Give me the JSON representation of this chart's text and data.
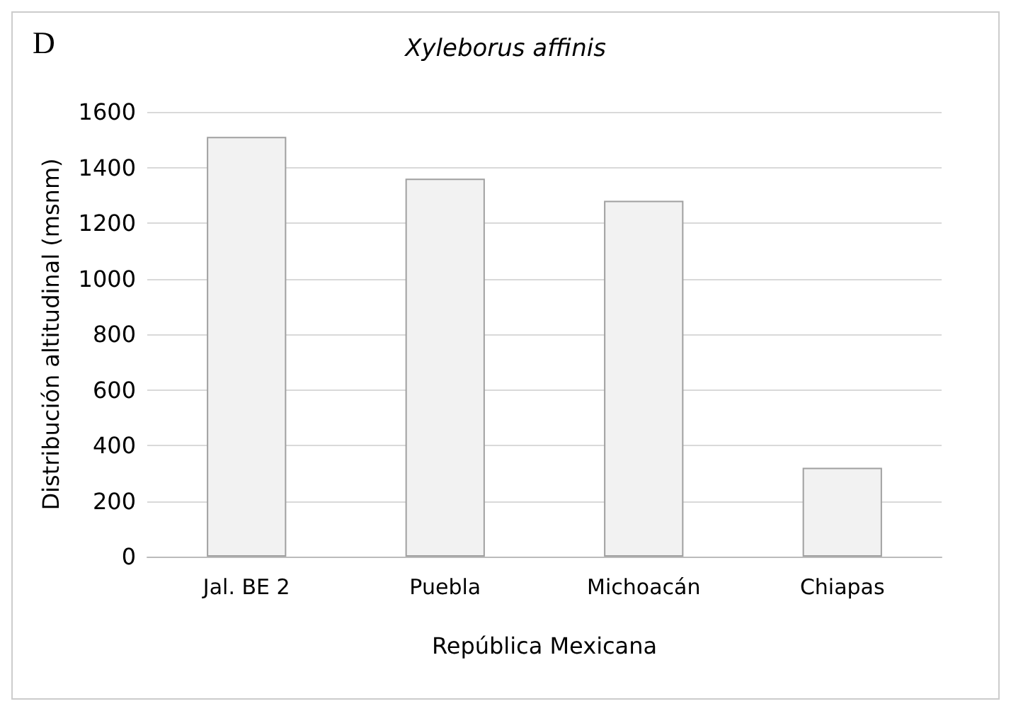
{
  "chart_data": {
    "type": "bar",
    "title": "Xyleborus affinis",
    "annotations": [
      "D"
    ],
    "xlabel": "República Mexicana",
    "ylabel": "Distribución altitudinal (msnm)",
    "categories": [
      "Jal. BE 2",
      "Puebla",
      "Michoacán",
      "Chiapas"
    ],
    "values": [
      1510,
      1360,
      1280,
      320
    ],
    "color": "#f2f2f2",
    "ylim": [
      0,
      1600
    ],
    "yticks": [
      0,
      200,
      400,
      600,
      800,
      1000,
      1200,
      1400,
      1600
    ],
    "grid": "y"
  }
}
